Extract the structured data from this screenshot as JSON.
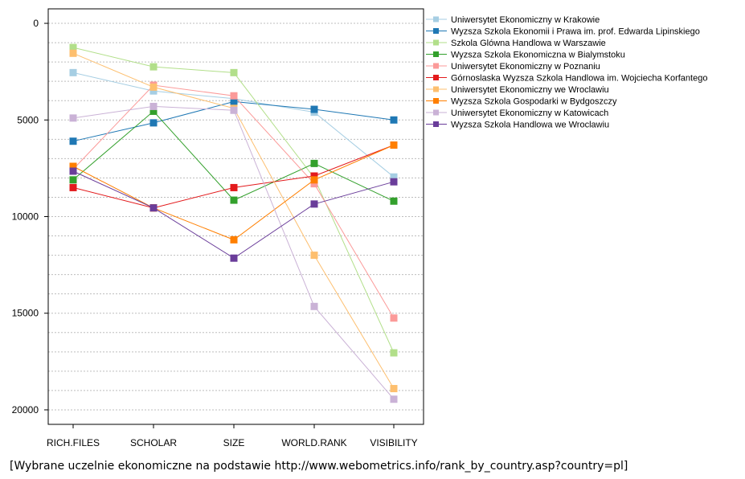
{
  "chart_data": {
    "type": "line",
    "categories": [
      "RICH.FILES",
      "SCHOLAR",
      "SIZE",
      "WORLD.RANK",
      "VISIBILITY"
    ],
    "y_ticks": [
      0,
      5000,
      10000,
      15000,
      20000
    ],
    "ylim": [
      -750,
      20750
    ],
    "y_inverted": true,
    "grid": true,
    "legend_placement": "right",
    "series": [
      {
        "name": "Uniwersytet Ekonomiczny w Krakowie",
        "color": "#a6cee3",
        "values": [
          2550,
          3500,
          3900,
          4600,
          7950
        ]
      },
      {
        "name": "Wyzsza Szkola Ekonomii i Prawa im. prof. Edwarda Lipinskiego",
        "color": "#1f78b4",
        "values": [
          6100,
          5150,
          4050,
          4450,
          5000
        ]
      },
      {
        "name": "Szkola Glówna Handlowa w Warszawie",
        "color": "#b2df8a",
        "values": [
          1250,
          2250,
          2550,
          8000,
          17050
        ]
      },
      {
        "name": "Wyzsza Szkola Ekonomiczna w Bialymstoku",
        "color": "#33a02c",
        "values": [
          8100,
          4550,
          9150,
          7250,
          9200
        ]
      },
      {
        "name": "Uniwersytet Ekonomiczny w Poznaniu",
        "color": "#fb9a99",
        "values": [
          7550,
          3200,
          3750,
          8300,
          15250
        ]
      },
      {
        "name": "Górnoslaska Wyzsza Szkola Handlowa im. Wojciecha Korfantego",
        "color": "#e31a1c",
        "values": [
          8500,
          9550,
          8500,
          7900,
          6300
        ]
      },
      {
        "name": "Uniwersytet Ekonomiczny we Wroclawiu",
        "color": "#fdbf6f",
        "values": [
          1550,
          3300,
          4400,
          12000,
          18900
        ]
      },
      {
        "name": "Wyzsza Szkola Gospodarki w Bydgoszczy",
        "color": "#ff7f00",
        "values": [
          7400,
          9550,
          11200,
          8100,
          6300
        ]
      },
      {
        "name": "Uniwersytet Ekonomiczny w Katowicach",
        "color": "#cab2d6",
        "values": [
          4900,
          4300,
          4500,
          14650,
          19450
        ]
      },
      {
        "name": "Wyzsza Szkola Handlowa we Wroclawiu",
        "color": "#6a3d9a",
        "values": [
          7650,
          9550,
          12150,
          9350,
          8200
        ]
      }
    ]
  },
  "caption": "[Wybrane uczelnie ekonomiczne na podstawie http://www.webometrics.info/rank_by_country.asp?country=pl]"
}
